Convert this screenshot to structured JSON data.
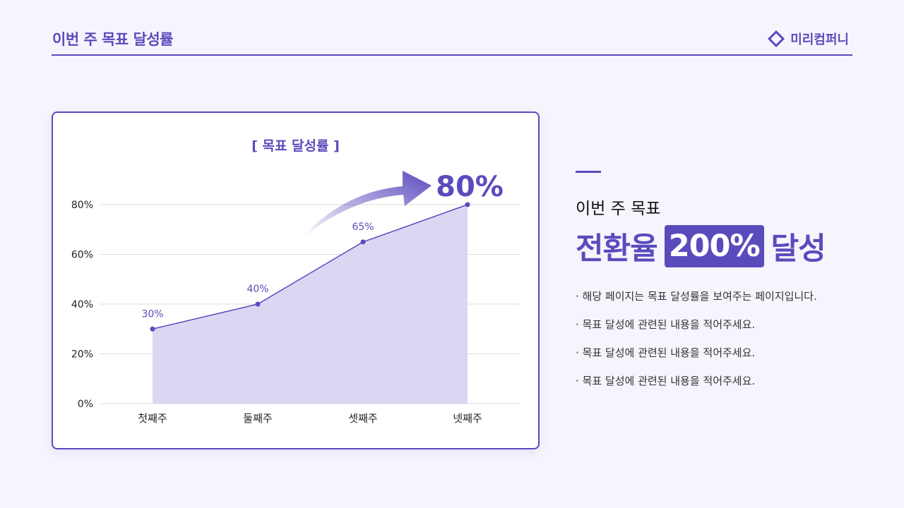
{
  "header": {
    "title": "이번 주 목표 달성률",
    "brand": "미리컴퍼니",
    "brand_icon": "diamond-icon"
  },
  "card": {
    "chart_title": "[ 목표 달성률 ]",
    "highlight": "80%"
  },
  "summary": {
    "subtitle": "이번 주 목표",
    "headline_pre": "전환율",
    "headline_badge": "200%",
    "headline_post": "달성",
    "bullets": [
      "· 해당 페이지는 목표 달성률을 보여주는 페이지입니다.",
      "· 목표 달성에 관련된 내용을 적어주세요.",
      "· 목표 달성에 관련된 내용을 적어주세요.",
      "· 목표 달성에 관련된 내용을 적어주세요."
    ]
  },
  "colors": {
    "accent": "#5a4bbd",
    "fill": "#dcd6f3",
    "background": "#f6f4fc"
  },
  "chart_data": {
    "type": "area",
    "title": "[ 목표 달성률 ]",
    "categories": [
      "첫째주",
      "둘째주",
      "셋째주",
      "넷째주"
    ],
    "values": [
      30,
      40,
      65,
      80
    ],
    "data_labels": [
      "30%",
      "40%",
      "65%",
      "80%"
    ],
    "yticks": [
      "0%",
      "20%",
      "40%",
      "60%",
      "80%"
    ],
    "ylim": [
      0,
      80
    ],
    "grid": true,
    "annotation": "80%",
    "xlabel": "",
    "ylabel": ""
  }
}
